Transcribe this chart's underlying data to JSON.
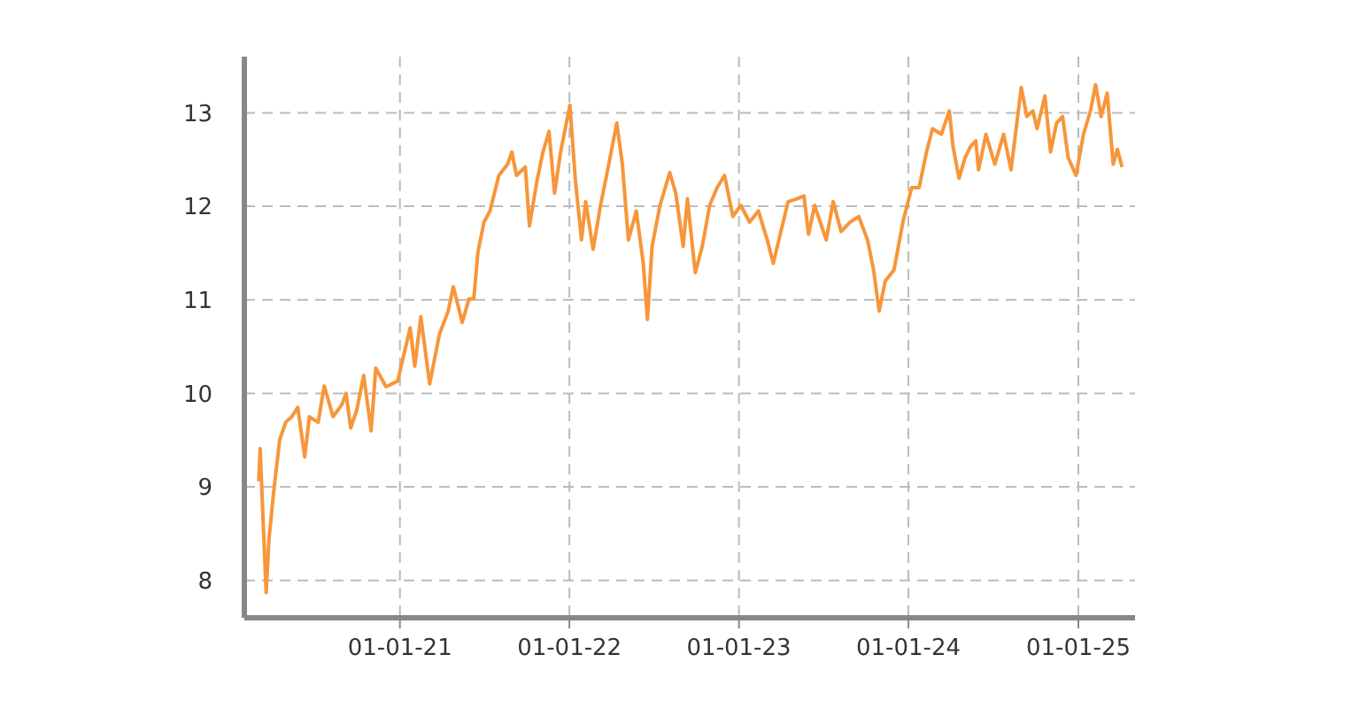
{
  "chart_data": {
    "type": "line",
    "x": [
      "2020-03-03",
      "2020-03-06",
      "2020-03-13",
      "2020-03-19",
      "2020-03-25",
      "2020-04-04",
      "2020-04-17",
      "2020-04-30",
      "2020-05-13",
      "2020-05-26",
      "2020-06-10",
      "2020-06-20",
      "2020-07-09",
      "2020-07-22",
      "2020-08-10",
      "2020-08-29",
      "2020-09-07",
      "2020-09-17",
      "2020-09-30",
      "2020-10-15",
      "2020-10-31",
      "2020-11-10",
      "2020-12-02",
      "2020-12-27",
      "2021-01-23",
      "2021-02-02",
      "2021-02-15",
      "2021-03-06",
      "2021-03-27",
      "2021-04-15",
      "2021-04-26",
      "2021-05-15",
      "2021-05-30",
      "2021-06-09",
      "2021-06-18",
      "2021-07-01",
      "2021-07-14",
      "2021-08-02",
      "2021-08-21",
      "2021-08-30",
      "2021-09-09",
      "2021-09-28",
      "2021-10-07",
      "2021-10-23",
      "2021-11-05",
      "2021-11-18",
      "2021-11-30",
      "2021-12-13",
      "2022-01-02",
      "2022-01-14",
      "2022-01-27",
      "2022-02-05",
      "2022-02-21",
      "2022-03-09",
      "2022-03-22",
      "2022-04-13",
      "2022-04-25",
      "2022-05-08",
      "2022-05-25",
      "2022-06-09",
      "2022-06-18",
      "2022-06-28",
      "2022-07-15",
      "2022-08-05",
      "2022-08-18",
      "2022-09-03",
      "2022-09-12",
      "2022-09-29",
      "2022-10-14",
      "2022-10-30",
      "2022-11-15",
      "2022-12-01",
      "2022-12-19",
      "2023-01-05",
      "2023-01-24",
      "2023-02-12",
      "2023-03-03",
      "2023-03-16",
      "2023-03-28",
      "2023-04-17",
      "2023-05-06",
      "2023-05-21",
      "2023-05-31",
      "2023-06-13",
      "2023-07-08",
      "2023-07-23",
      "2023-08-09",
      "2023-08-28",
      "2023-09-16",
      "2023-10-05",
      "2023-10-18",
      "2023-10-30",
      "2023-11-12",
      "2023-12-01",
      "2023-12-20",
      "2024-01-08",
      "2024-01-24",
      "2024-02-09",
      "2024-02-22",
      "2024-03-12",
      "2024-03-29",
      "2024-04-06",
      "2024-04-19",
      "2024-05-02",
      "2024-05-14",
      "2024-05-25",
      "2024-05-31",
      "2024-06-16",
      "2024-07-05",
      "2024-07-24",
      "2024-08-09",
      "2024-08-31",
      "2024-09-12",
      "2024-09-25",
      "2024-10-04",
      "2024-10-21",
      "2024-11-02",
      "2024-11-15",
      "2024-11-28",
      "2024-12-10",
      "2024-12-27",
      "2025-01-12",
      "2025-01-27",
      "2025-02-07",
      "2025-02-19",
      "2025-03-04",
      "2025-03-17",
      "2025-03-26",
      "2025-04-05"
    ],
    "series": [
      {
        "color": "#f7963a",
        "values": [
          9.06,
          9.41,
          8.56,
          7.87,
          8.44,
          8.94,
          9.5,
          9.69,
          9.75,
          9.85,
          9.32,
          9.75,
          9.69,
          10.08,
          9.75,
          9.88,
          10.0,
          9.63,
          9.82,
          10.19,
          9.6,
          10.27,
          10.07,
          10.13,
          10.7,
          10.29,
          10.82,
          10.1,
          10.63,
          10.88,
          11.14,
          10.76,
          11.01,
          11.01,
          11.51,
          11.83,
          11.95,
          12.33,
          12.45,
          12.58,
          12.33,
          12.42,
          11.79,
          12.27,
          12.58,
          12.8,
          12.14,
          12.58,
          13.08,
          12.27,
          11.64,
          12.05,
          11.54,
          12.01,
          12.33,
          12.89,
          12.45,
          11.64,
          11.95,
          11.39,
          10.79,
          11.57,
          12.01,
          12.36,
          12.14,
          11.57,
          12.08,
          11.29,
          11.57,
          12.01,
          12.2,
          12.33,
          11.89,
          12.01,
          11.83,
          11.95,
          11.64,
          11.39,
          11.64,
          12.05,
          12.08,
          12.11,
          11.7,
          12.01,
          11.64,
          12.05,
          11.73,
          11.83,
          11.89,
          11.64,
          11.32,
          10.88,
          11.2,
          11.32,
          11.83,
          12.2,
          12.2,
          12.58,
          12.83,
          12.77,
          13.02,
          12.64,
          12.3,
          12.52,
          12.64,
          12.7,
          12.39,
          12.77,
          12.45,
          12.77,
          12.39,
          13.27,
          12.96,
          13.02,
          12.83,
          13.18,
          12.58,
          12.89,
          12.96,
          12.52,
          12.33,
          12.77,
          13.02,
          13.3,
          12.96,
          13.21,
          12.45,
          12.61,
          12.42
        ]
      }
    ],
    "xlim": [
      "2020-02-01",
      "2025-05-03"
    ],
    "xticks": [
      {
        "value": "2021-01-01",
        "label": "01-01-21"
      },
      {
        "value": "2022-01-01",
        "label": "01-01-22"
      },
      {
        "value": "2023-01-01",
        "label": "01-01-23"
      },
      {
        "value": "2024-01-01",
        "label": "01-01-24"
      },
      {
        "value": "2025-01-01",
        "label": "01-01-25"
      }
    ],
    "ylim": [
      7.6,
      13.6
    ],
    "yticks": [
      8,
      9,
      10,
      11,
      12,
      13
    ],
    "grid": true,
    "marker": "none",
    "line_style": "solid"
  }
}
